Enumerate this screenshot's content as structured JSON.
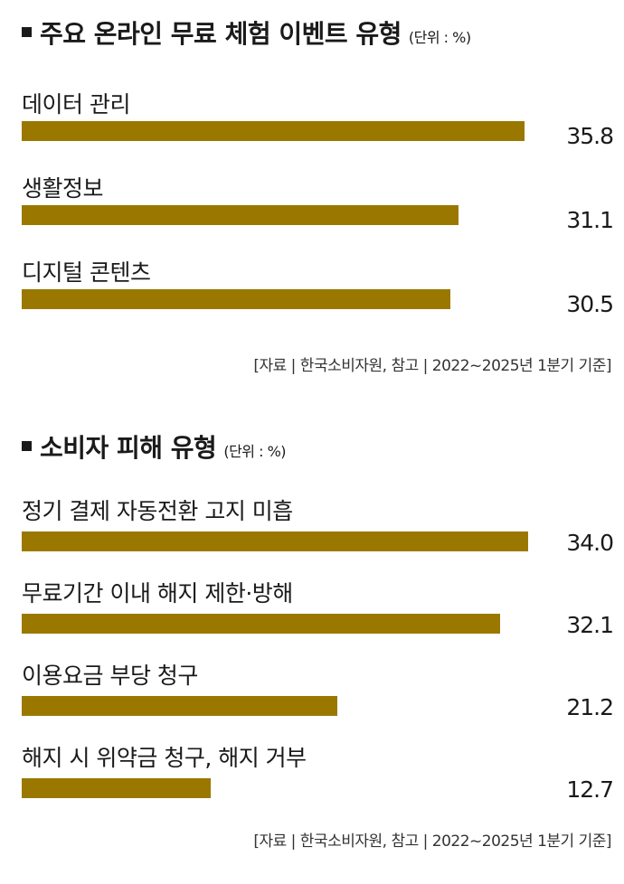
{
  "accent_color": "#9a7800",
  "chart_data": [
    {
      "type": "bar",
      "orientation": "horizontal",
      "title": "주요 온라인 무료 체험 이벤트 유형",
      "unit": "(단위 : %)",
      "categories": [
        "데이터 관리",
        "생활정보",
        "디지털 콘텐츠"
      ],
      "values": [
        35.8,
        31.1,
        30.5
      ],
      "value_labels": [
        "35.8",
        "31.1",
        "30.5"
      ],
      "xlim": [
        0,
        37
      ],
      "source": "[자료 | 한국소비자원, 참고 | 2022~2025년 1분기 기준]"
    },
    {
      "type": "bar",
      "orientation": "horizontal",
      "title": "소비자 피해 유형",
      "unit": "(단위 : %)",
      "categories": [
        "정기 결제 자동전환 고지 미흡",
        "무료기간 이내 해지 제한·방해",
        "이용요금 부당 청구",
        "해지 시 위약금 청구, 해지 거부"
      ],
      "values": [
        34.0,
        32.1,
        21.2,
        12.7
      ],
      "value_labels": [
        "34.0",
        "32.1",
        "21.2",
        "12.7"
      ],
      "xlim": [
        0,
        34.9
      ],
      "source": "[자료 | 한국소비자원, 참고 | 2022~2025년 1분기 기준]"
    }
  ]
}
